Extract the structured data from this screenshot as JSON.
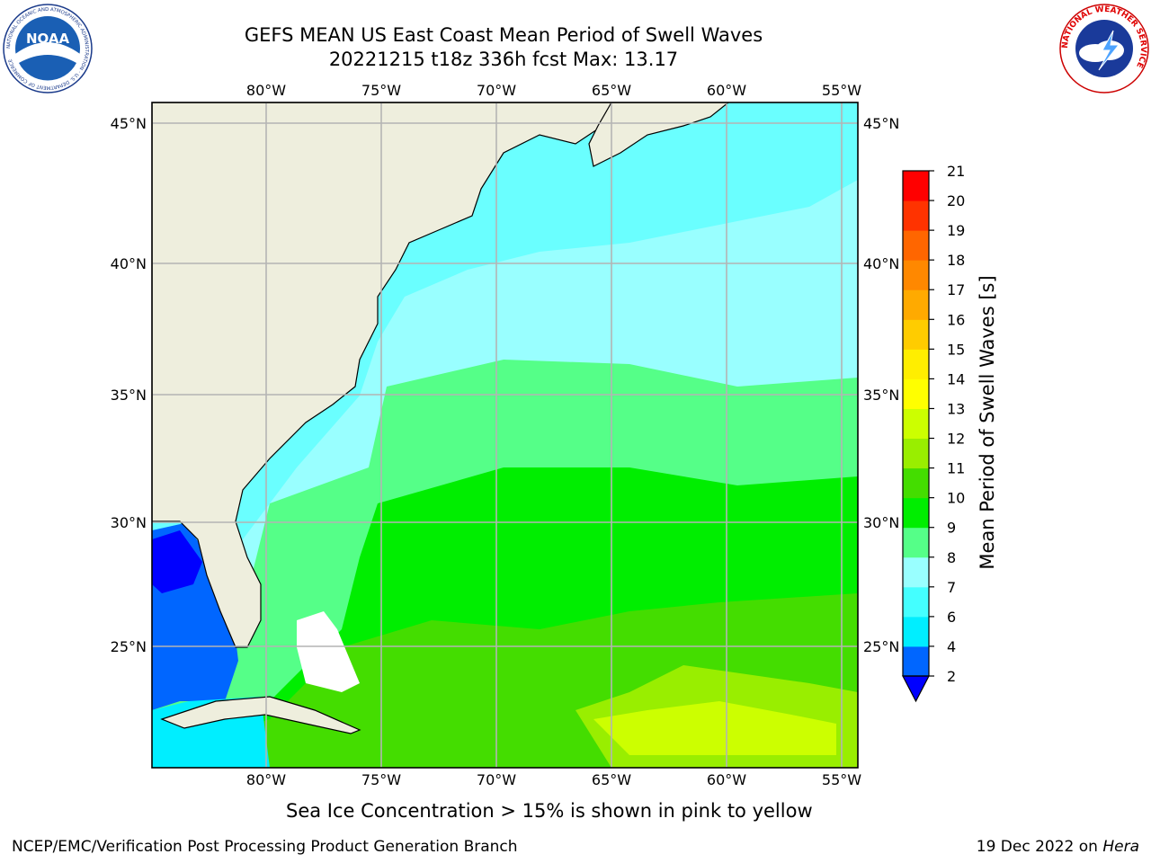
{
  "title": {
    "line1": "GEFS MEAN US East Coast Mean Period of Swell Waves",
    "line2": "20221215 t18z 336h fcst   Max: 13.17"
  },
  "map": {
    "lon_ticks": [
      "80°W",
      "75°W",
      "70°W",
      "65°W",
      "60°W",
      "55°W"
    ],
    "lat_ticks": [
      "45°N",
      "40°N",
      "35°N",
      "30°N",
      "25°N"
    ],
    "land_color": "#eeeedd",
    "grid_color": "#b4b4b4"
  },
  "colorbar": {
    "label": "Mean Period of Swell Waves [s]",
    "ticks": [
      "2",
      "4",
      "6",
      "7",
      "8",
      "9",
      "10",
      "11",
      "12",
      "13",
      "14",
      "15",
      "16",
      "17",
      "18",
      "19",
      "20",
      "21"
    ],
    "colors": [
      "#0066ff",
      "#00eeff",
      "#44ffff",
      "#99ffff",
      "#55ff88",
      "#00ee00",
      "#44dd00",
      "#99ee00",
      "#ccff00",
      "#ffff00",
      "#ffee00",
      "#ffcc00",
      "#ffaa00",
      "#ff8800",
      "#ff6600",
      "#ff3300",
      "#ff0000"
    ],
    "extend_color": "#0000ff"
  },
  "logos": {
    "noaa_text": "NOAA",
    "noaa_ring": "NATIONAL OCEANIC AND ATMOSPHERIC ADMINISTRATION · U.S. DEPARTMENT OF COMMERCE",
    "nws_ring": "NATIONAL WEATHER SERVICE"
  },
  "footer": {
    "note": "Sea Ice Concentration > 15% is shown in pink to yellow",
    "credit": "NCEP/EMC/Verification Post Processing Product Generation Branch",
    "date": "19 Dec 2022 on",
    "host": "Hera"
  }
}
